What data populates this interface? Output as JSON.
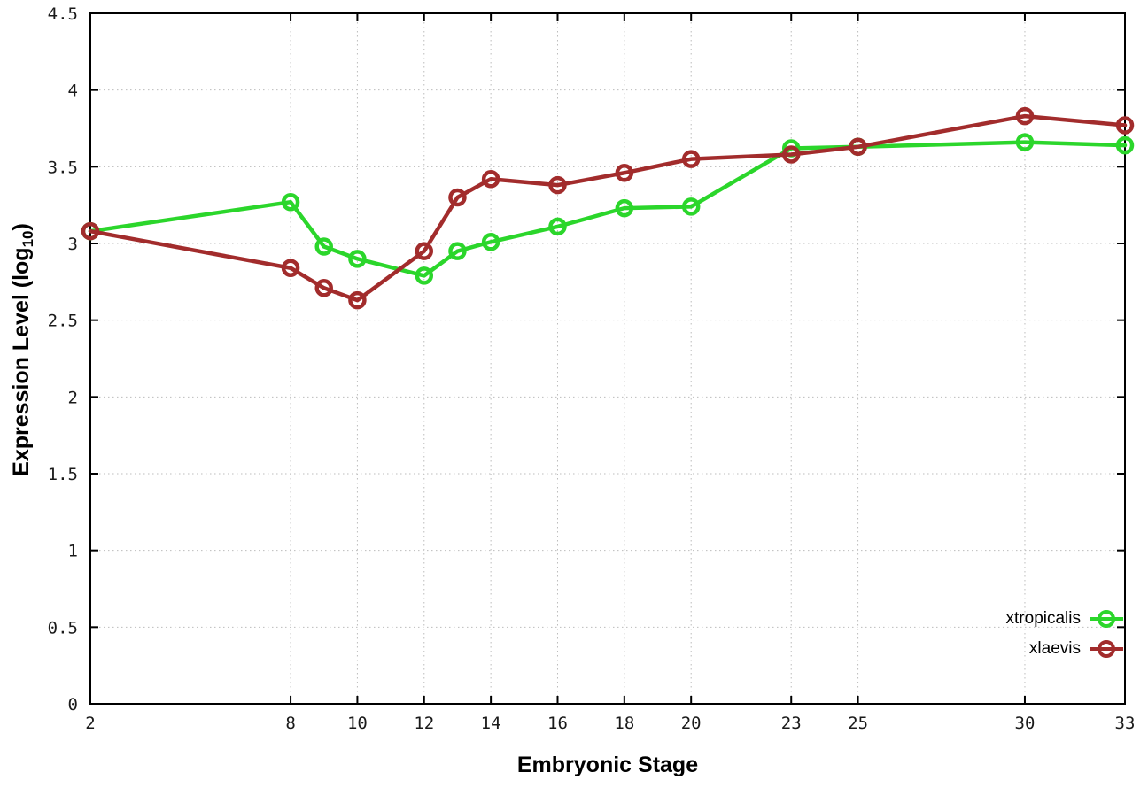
{
  "chart_data": {
    "type": "line",
    "title": "",
    "xlabel": "Embryonic Stage",
    "ylabel": "Expression Level (log10)",
    "xlim": [
      2,
      33
    ],
    "ylim": [
      0,
      4.5
    ],
    "xticks": [
      2,
      8,
      10,
      12,
      14,
      16,
      18,
      20,
      23,
      25,
      30,
      33
    ],
    "yticks": [
      0,
      0.5,
      1,
      1.5,
      2,
      2.5,
      3,
      3.5,
      4,
      4.5
    ],
    "grid": true,
    "legend_position": "bottom-right",
    "x": [
      2,
      8,
      9,
      10,
      12,
      13,
      14,
      16,
      18,
      20,
      23,
      25,
      30,
      33
    ],
    "series": [
      {
        "name": "xtropicalis",
        "color": "#2bd62b",
        "marker": "open-circle",
        "values": [
          3.08,
          3.27,
          2.98,
          2.9,
          2.79,
          2.95,
          3.01,
          3.11,
          3.23,
          3.24,
          3.62,
          3.63,
          3.66,
          3.64
        ]
      },
      {
        "name": "xlaevis",
        "color": "#a22c2c",
        "marker": "open-circle",
        "values": [
          3.08,
          2.84,
          2.71,
          2.63,
          2.95,
          3.3,
          3.42,
          3.38,
          3.46,
          3.55,
          3.58,
          3.63,
          3.83,
          3.77
        ]
      }
    ]
  },
  "labels": {
    "ylabel_prefix": "Expression Level (log",
    "ylabel_sub": "10",
    "ylabel_suffix": ")",
    "xlabel": "Embryonic Stage"
  },
  "style": {
    "axis_color": "#000000",
    "tick_label_color": "#1a1a1a",
    "grid_color": "#bcbcbc",
    "background": "#ffffff"
  }
}
